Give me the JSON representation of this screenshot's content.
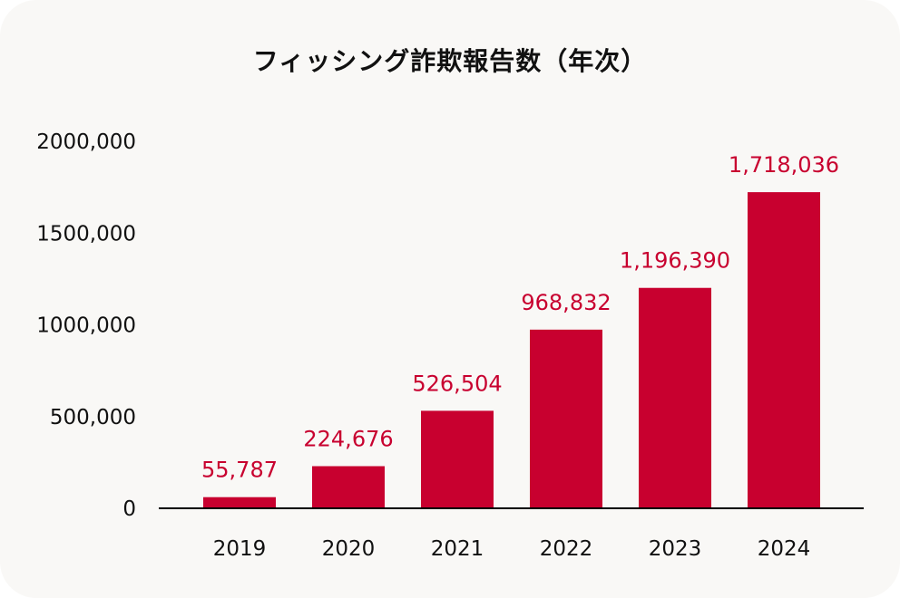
{
  "chart_data": {
    "type": "bar",
    "title": "フィッシング詐欺報告数（年次）",
    "categories": [
      "2019",
      "2020",
      "2021",
      "2022",
      "2023",
      "2024"
    ],
    "values": [
      55787,
      224676,
      526504,
      968832,
      1196390,
      1718036
    ],
    "data_labels": [
      "55,787",
      "224,676",
      "526,504",
      "968,832",
      "1,196,390",
      "1,718,036"
    ],
    "yticks": [
      0,
      500000,
      1000000,
      1500000,
      2000000
    ],
    "ytick_labels": [
      "0",
      "500,000",
      "1000,000",
      "1500,000",
      "2000,000"
    ],
    "ylim": [
      0,
      2000000
    ],
    "xlabel": "",
    "ylabel": "",
    "grid": false,
    "legend": "none",
    "colors": {
      "bar": "#c8002f",
      "label": "#c8002f",
      "background": "#f9f8f6"
    }
  }
}
